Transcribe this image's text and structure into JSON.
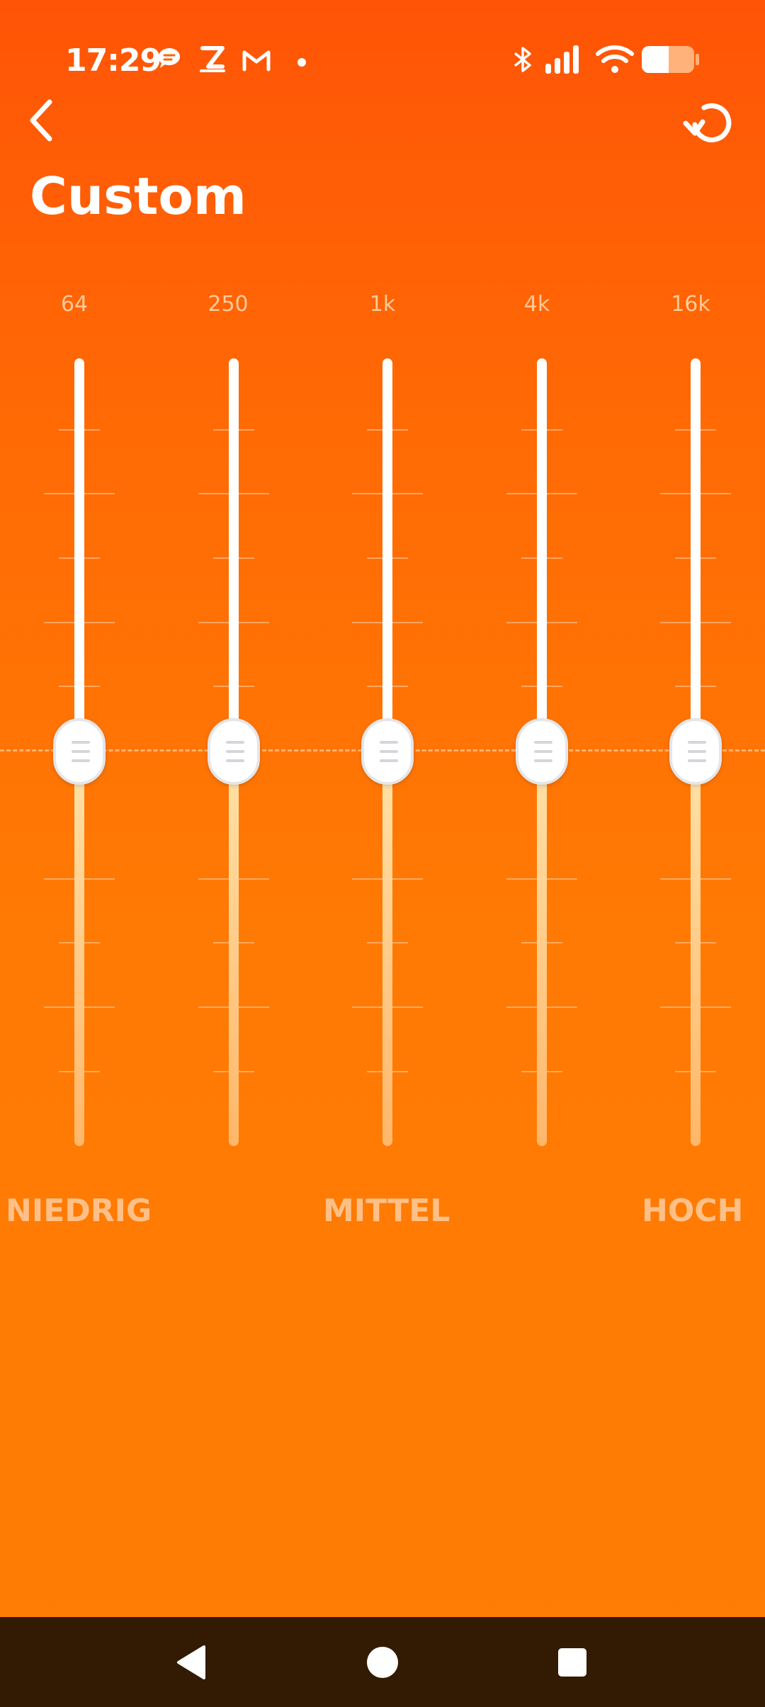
{
  "status_bar": {
    "time": "17:29",
    "left_icons": [
      "chat-bubble-icon",
      "z-app-icon",
      "gmail-icon",
      "dot-icon"
    ],
    "right_icons": [
      "bluetooth-icon",
      "signal-icon",
      "wifi-icon",
      "battery-icon"
    ],
    "battery_level": 0.5
  },
  "header": {
    "back_icon": "chevron-left-icon",
    "reset_icon": "reset-icon",
    "title": "Custom"
  },
  "equalizer": {
    "bands": [
      {
        "label": "64",
        "value": 0
      },
      {
        "label": "250",
        "value": 0
      },
      {
        "label": "1k",
        "value": 0
      },
      {
        "label": "4k",
        "value": 0
      },
      {
        "label": "16k",
        "value": 0
      }
    ],
    "range_labels": {
      "low": "NIEDRIG",
      "mid": "MITTEL",
      "high": "HOCH"
    }
  },
  "colors": {
    "background_top": "#ff5406",
    "background_bottom": "#ff7d04",
    "track_upper": "#ffffff",
    "track_lower": "#ffc884",
    "nav_bar": "#321a03"
  },
  "nav_bar": {
    "icons": [
      "back-triangle-icon",
      "home-circle-icon",
      "recents-square-icon"
    ]
  }
}
